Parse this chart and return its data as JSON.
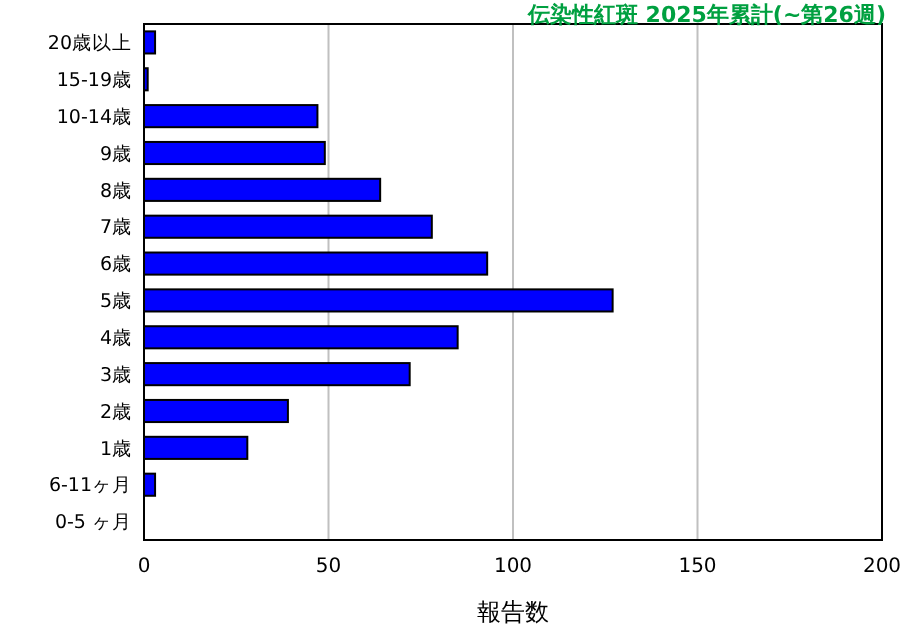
{
  "chart_data": {
    "type": "bar",
    "orientation": "horizontal",
    "title": "伝染性紅斑 2025年累計(~第26週)",
    "xlabel": "報告数",
    "categories": [
      "20歳以上",
      "15-19歳",
      "10-14歳",
      "9歳",
      "8歳",
      "7歳",
      "6歳",
      "5歳",
      "4歳",
      "3歳",
      "2歳",
      "1歳",
      "6-11ヶ月",
      "0-5 ヶ月"
    ],
    "values": [
      3,
      1,
      47,
      49,
      64,
      78,
      93,
      127,
      85,
      72,
      39,
      28,
      3,
      0
    ],
    "color": "#0000ff",
    "xlim": [
      0,
      200
    ],
    "xticks": [
      0,
      50,
      100,
      150,
      200
    ],
    "grid": "x"
  }
}
